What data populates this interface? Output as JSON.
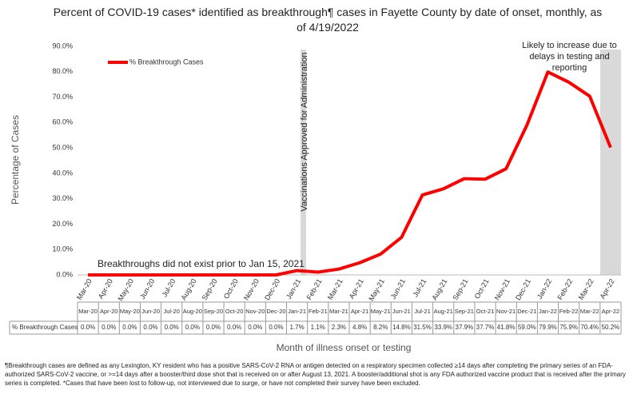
{
  "chart_data": {
    "type": "line",
    "title": "Percent of COVID-19 cases* identified as breakthrough¶ cases in Fayette County by date of onset, monthly, as of 4/19/2022",
    "x_label": "Month of illness onset or testing",
    "y_label": "Percentage of Cases",
    "annotations": [
      "Vaccinations Approved for Administration",
      "Breakthroughs did not exist prior to Jan 15, 2021",
      "Likely to increase due to delays in testing and reporting"
    ],
    "footnote": "¶Breakthrough cases are defined as any Lexington, KY resident who has a positive SARS-CoV-2 RNA or antigen detected on a respiratory specimen collected ≥14 days after completing the primary series of an FDA-authorized SARS-CoV-2 vaccine, or >=14 days after a booster/third dose shot that is received on or after August 13, 2021.  A booster/additional shot is any FDA authorized vaccine product that is received after the primary series is completed. *Cases that have been lost to follow-up, not interviewed due to surge, or have not completed their survey have been excluded.",
    "categories": [
      "Mar-20",
      "Apr-20",
      "May-20",
      "Jun-20",
      "Jul-20",
      "Aug-20",
      "Sep-20",
      "Oct-20",
      "Nov-20",
      "Dec-20",
      "Jan-21",
      "Feb-21",
      "Mar-21",
      "Apr-21",
      "May-21",
      "Jun-21",
      "Jul-21",
      "Aug-21",
      "Sep-21",
      "Oct-21",
      "Nov-21",
      "Dec-21",
      "Jan-22",
      "Feb-22",
      "Mar-22",
      "Apr-22"
    ],
    "series": [
      {
        "name": "% Breakthrough Cases",
        "color": "#ff0000",
        "values": [
          0,
          0,
          0,
          0,
          0,
          0,
          0,
          0,
          0,
          0,
          1.7,
          1.1,
          2.3,
          4.8,
          8.2,
          14.8,
          31.5,
          33.9,
          37.9,
          37.7,
          41.8,
          59.0,
          79.9,
          75.9,
          70.4,
          50.2
        ],
        "value_labels": [
          "0.0%",
          "0.0%",
          "0.0%",
          "0.0%",
          "0.0%",
          "0.0%",
          "0.0%",
          "0.0%",
          "0.0%",
          "0.0%",
          "1.7%",
          "1.1%",
          "2.3%",
          "4.8%",
          "8.2%",
          "14.8%",
          "31.5%",
          "33.9%",
          "37.9%",
          "37.7%",
          "41.8%",
          "59.0%",
          "79.9%",
          "75.9%",
          "70.4%",
          "50.2%"
        ]
      }
    ],
    "ylim": [
      0,
      90
    ],
    "yticks": [
      {
        "value": 0,
        "label": "0.0%"
      },
      {
        "value": 10,
        "label": "10.0%"
      },
      {
        "value": 20,
        "label": "20.0%"
      },
      {
        "value": 30,
        "label": "30.0%"
      },
      {
        "value": 40,
        "label": "40.0%"
      },
      {
        "value": 50,
        "label": "50.0%"
      },
      {
        "value": 60,
        "label": "60.0%"
      },
      {
        "value": 70,
        "label": "70.0%"
      },
      {
        "value": 80,
        "label": "80.0%"
      },
      {
        "value": 90,
        "label": "90.0%"
      }
    ],
    "grid": false
  }
}
